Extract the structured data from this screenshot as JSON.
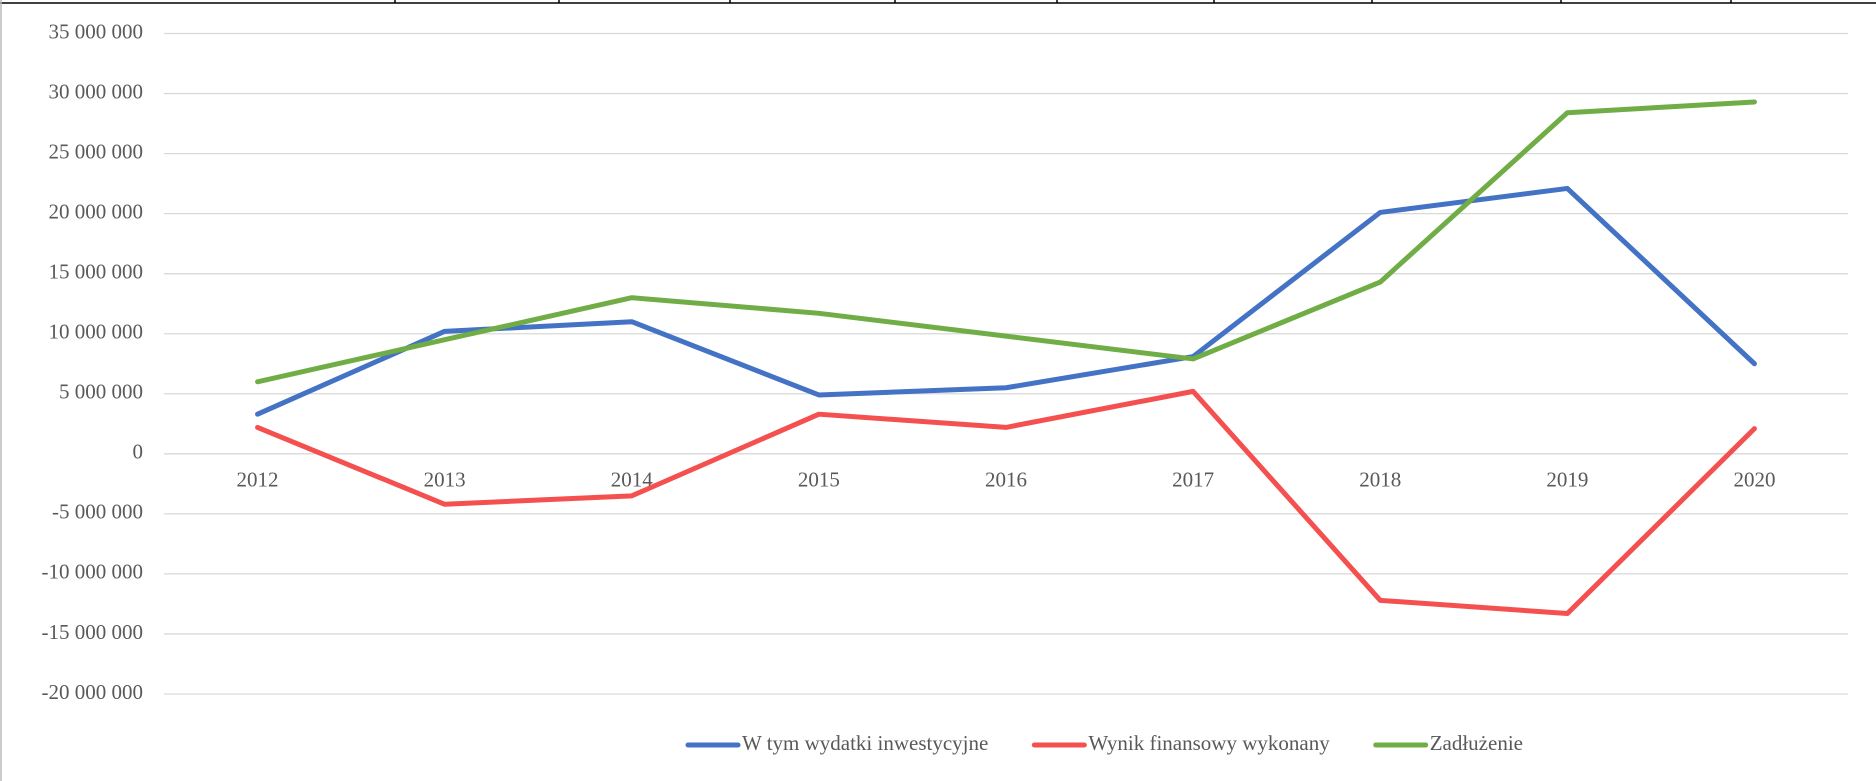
{
  "chart_data": {
    "type": "line",
    "categories": [
      "2012",
      "2013",
      "2014",
      "2015",
      "2016",
      "2017",
      "2018",
      "2019",
      "2020"
    ],
    "series": [
      {
        "name": "W tym wydatki inwestycyjne",
        "color": "#4472c4",
        "values": [
          3300000,
          10200000,
          11000000,
          4900000,
          5500000,
          8100000,
          20100000,
          22100000,
          7500000
        ]
      },
      {
        "name": "Wynik finansowy wykonany",
        "color": "#f4504f",
        "values": [
          2200000,
          -4200000,
          -3500000,
          3300000,
          2200000,
          5200000,
          -12200000,
          -13300000,
          2100000
        ]
      },
      {
        "name": "Zadłużenie",
        "color": "#70ad47",
        "values": [
          6000000,
          9500000,
          13000000,
          11700000,
          9800000,
          7900000,
          14300000,
          28400000,
          29300000
        ]
      }
    ],
    "ylim": [
      -20000000,
      35000000
    ],
    "yticks": [
      {
        "value": -20000000,
        "label": "-20 000 000"
      },
      {
        "value": -15000000,
        "label": "-15 000 000"
      },
      {
        "value": -10000000,
        "label": "-10 000 000"
      },
      {
        "value": -5000000,
        "label": "-5 000 000"
      },
      0,
      {
        "value": 5000000,
        "label": "5 000 000"
      },
      {
        "value": 10000000,
        "label": "10 000 000"
      },
      {
        "value": 15000000,
        "label": "15 000 000"
      },
      {
        "value": 20000000,
        "label": "20 000 000"
      },
      {
        "value": 25000000,
        "label": "25 000 000"
      },
      {
        "value": 30000000,
        "label": "30 000 000"
      },
      {
        "value": 35000000,
        "label": "35 000 000"
      }
    ],
    "grid": true,
    "legend": "bottom"
  }
}
